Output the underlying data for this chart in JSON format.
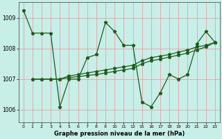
{
  "bg_color": "#c8eee8",
  "grid_color": "#e8a0a0",
  "line_color": "#1a5c1a",
  "title": "Graphe pression niveau de la mer (hPa)",
  "ylabel_ticks": [
    1006,
    1007,
    1008,
    1009
  ],
  "xtick_labels": [
    "0",
    "1",
    "2",
    "3",
    "4",
    "5",
    "6",
    "7",
    "8",
    "9",
    "10",
    "11",
    "12",
    "15",
    "16",
    "17",
    "18",
    "19",
    "20",
    "21",
    "22",
    "23"
  ],
  "ylim": [
    1005.6,
    1009.5
  ],
  "line1_x": [
    0,
    1,
    2,
    3,
    4,
    5,
    6,
    7,
    8,
    9,
    10,
    11,
    12,
    13,
    14,
    15,
    16,
    17,
    18,
    19,
    20,
    21
  ],
  "line1_y": [
    1009.25,
    1008.5,
    1008.5,
    1008.5,
    1006.1,
    1007.0,
    1007.0,
    1007.7,
    1007.8,
    1008.85,
    1008.55,
    1008.1,
    1008.1,
    1006.25,
    1006.1,
    1006.55,
    1007.15,
    1007.0,
    1007.15,
    1008.15,
    1008.55,
    1008.2
  ],
  "line2_x": [
    1,
    2,
    3,
    4,
    5,
    6,
    7,
    8,
    9,
    10,
    11,
    12,
    13,
    14,
    15,
    16,
    17,
    18,
    19,
    20,
    21
  ],
  "line2_y": [
    1007.0,
    1007.0,
    1007.0,
    1007.0,
    1007.1,
    1007.15,
    1007.2,
    1007.25,
    1007.3,
    1007.35,
    1007.4,
    1007.45,
    1007.6,
    1007.7,
    1007.75,
    1007.8,
    1007.88,
    1007.95,
    1008.05,
    1008.1,
    1008.2
  ],
  "line3_x": [
    1,
    2,
    3,
    4,
    5,
    6,
    7,
    8,
    9,
    10,
    11,
    12,
    13,
    14,
    15,
    16,
    17,
    18,
    19,
    20,
    21
  ],
  "line3_y": [
    1007.0,
    1007.0,
    1007.0,
    1007.0,
    1007.05,
    1007.08,
    1007.12,
    1007.15,
    1007.2,
    1007.25,
    1007.3,
    1007.35,
    1007.5,
    1007.6,
    1007.65,
    1007.72,
    1007.78,
    1007.85,
    1007.95,
    1008.05,
    1008.2
  ]
}
